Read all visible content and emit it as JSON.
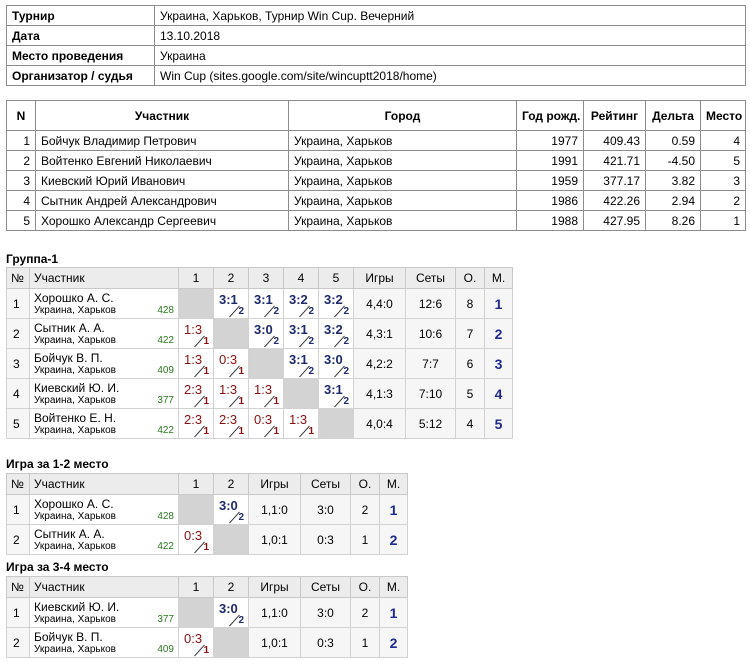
{
  "info": {
    "rows": [
      [
        "Турнир",
        "Украина, Харьков, Турнир Win Cup. Вечерний"
      ],
      [
        "Дата",
        "13.10.2018"
      ],
      [
        "Место проведения",
        "Украина"
      ],
      [
        "Организатор / судья",
        "Win Cup (sites.google.com/site/wincuptt2018/home)"
      ]
    ]
  },
  "participants": {
    "header": [
      "N",
      "Участник",
      "Город",
      "Год рожд.",
      "Рейтинг",
      "Дельта",
      "Место"
    ],
    "rows": [
      [
        "1",
        "Бойчук Владимир Петрович",
        "Украина, Харьков",
        "1977",
        "409.43",
        "0.59",
        "4"
      ],
      [
        "2",
        "Войтенко Евгений Николаевич",
        "Украина, Харьков",
        "1991",
        "421.71",
        "-4.50",
        "5"
      ],
      [
        "3",
        "Киевский Юрий Иванович",
        "Украина, Харьков",
        "1959",
        "377.17",
        "3.82",
        "3"
      ],
      [
        "4",
        "Сытник Андрей Александрович",
        "Украина, Харьков",
        "1986",
        "422.26",
        "2.94",
        "2"
      ],
      [
        "5",
        "Хорошко Александр Сергеевич",
        "Украина, Харьков",
        "1988",
        "427.95",
        "8.26",
        "1"
      ]
    ]
  },
  "groups": [
    {
      "title": "Группа-1",
      "header": [
        "№",
        "Участник",
        "1",
        "2",
        "3",
        "4",
        "5",
        "Игры",
        "Сеты",
        "О.",
        "М."
      ],
      "rows": [
        {
          "n": "1",
          "name": "Хорошко А. С.",
          "city": "Украина, Харьков",
          "rating": "428",
          "cells": [
            null,
            {
              "score": "3:1",
              "pts": "2"
            },
            {
              "score": "3:1",
              "pts": "2"
            },
            {
              "score": "3:2",
              "pts": "2"
            },
            {
              "score": "3:2",
              "pts": "2"
            }
          ],
          "games": "4,4:0",
          "sets": "12:6",
          "points": "8",
          "place": "1"
        },
        {
          "n": "2",
          "name": "Сытник А. А.",
          "city": "Украина, Харьков",
          "rating": "422",
          "cells": [
            {
              "score": "1:3",
              "pts": "1"
            },
            null,
            {
              "score": "3:0",
              "pts": "2"
            },
            {
              "score": "3:1",
              "pts": "2"
            },
            {
              "score": "3:2",
              "pts": "2"
            }
          ],
          "games": "4,3:1",
          "sets": "10:6",
          "points": "7",
          "place": "2"
        },
        {
          "n": "3",
          "name": "Бойчук В. П.",
          "city": "Украина, Харьков",
          "rating": "409",
          "cells": [
            {
              "score": "1:3",
              "pts": "1"
            },
            {
              "score": "0:3",
              "pts": "1"
            },
            null,
            {
              "score": "3:1",
              "pts": "2"
            },
            {
              "score": "3:0",
              "pts": "2"
            }
          ],
          "games": "4,2:2",
          "sets": "7:7",
          "points": "6",
          "place": "3"
        },
        {
          "n": "4",
          "name": "Киевский Ю. И.",
          "city": "Украина, Харьков",
          "rating": "377",
          "cells": [
            {
              "score": "2:3",
              "pts": "1"
            },
            {
              "score": "1:3",
              "pts": "1"
            },
            {
              "score": "1:3",
              "pts": "1"
            },
            null,
            {
              "score": "3:1",
              "pts": "2"
            }
          ],
          "games": "4,1:3",
          "sets": "7:10",
          "points": "5",
          "place": "4"
        },
        {
          "n": "5",
          "name": "Войтенко Е. Н.",
          "city": "Украина, Харьков",
          "rating": "422",
          "cells": [
            {
              "score": "2:3",
              "pts": "1"
            },
            {
              "score": "2:3",
              "pts": "1"
            },
            {
              "score": "0:3",
              "pts": "1"
            },
            {
              "score": "1:3",
              "pts": "1"
            },
            null
          ],
          "games": "4,0:4",
          "sets": "5:12",
          "points": "4",
          "place": "5"
        }
      ]
    },
    {
      "title": "Игра за 1-2 место",
      "header": [
        "№",
        "Участник",
        "1",
        "2",
        "Игры",
        "Сеты",
        "О.",
        "М."
      ],
      "rows": [
        {
          "n": "1",
          "name": "Хорошко А. С.",
          "city": "Украина, Харьков",
          "rating": "428",
          "cells": [
            null,
            {
              "score": "3:0",
              "pts": "2"
            }
          ],
          "games": "1,1:0",
          "sets": "3:0",
          "points": "2",
          "place": "1"
        },
        {
          "n": "2",
          "name": "Сытник А. А.",
          "city": "Украина, Харьков",
          "rating": "422",
          "cells": [
            {
              "score": "0:3",
              "pts": "1"
            },
            null
          ],
          "games": "1,0:1",
          "sets": "0:3",
          "points": "1",
          "place": "2"
        }
      ]
    },
    {
      "title": "Игра за 3-4 место",
      "header": [
        "№",
        "Участник",
        "1",
        "2",
        "Игры",
        "Сеты",
        "О.",
        "М."
      ],
      "rows": [
        {
          "n": "1",
          "name": "Киевский Ю. И.",
          "city": "Украина, Харьков",
          "rating": "377",
          "cells": [
            null,
            {
              "score": "3:0",
              "pts": "2"
            }
          ],
          "games": "1,1:0",
          "sets": "3:0",
          "points": "2",
          "place": "1"
        },
        {
          "n": "2",
          "name": "Бойчук В. П.",
          "city": "Украина, Харьков",
          "rating": "409",
          "cells": [
            {
              "score": "0:3",
              "pts": "1"
            },
            null
          ],
          "games": "1,0:1",
          "sets": "0:3",
          "points": "1",
          "place": "2"
        }
      ]
    }
  ]
}
